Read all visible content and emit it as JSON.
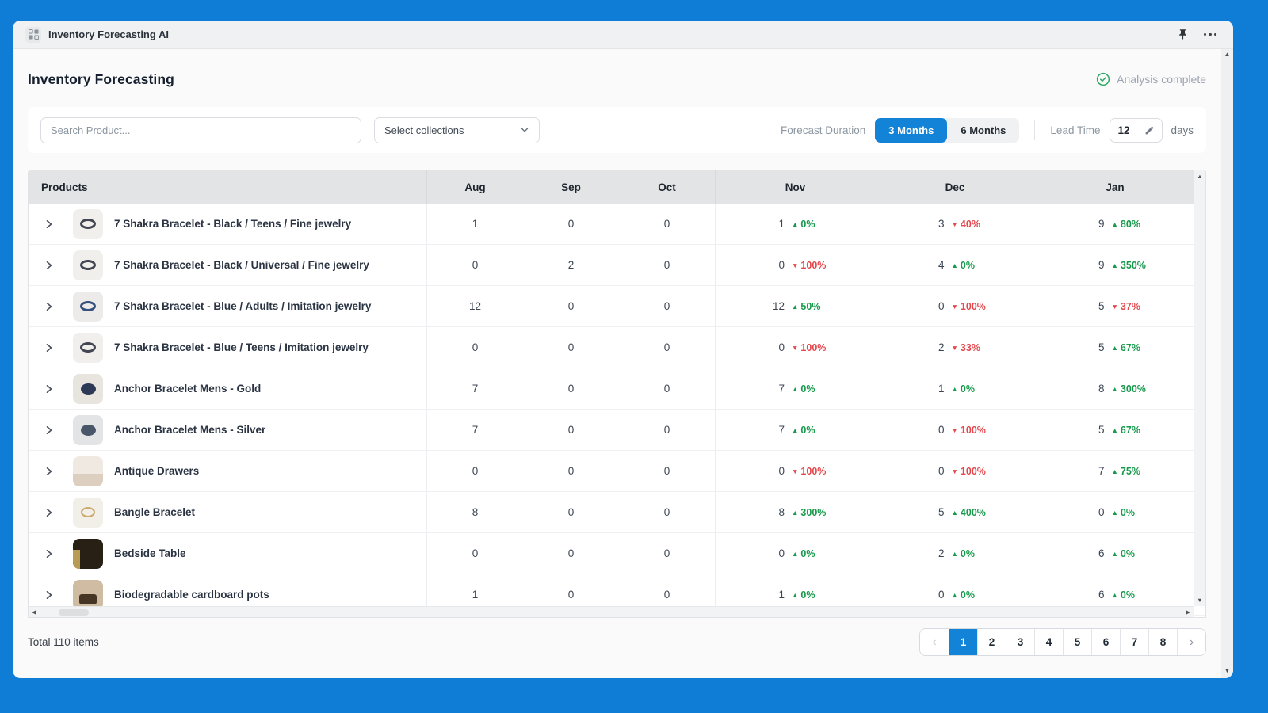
{
  "colors": {
    "accent": "#1283d6",
    "frame": "#0f7cd6",
    "up": "#189a4d",
    "down": "#e5484d"
  },
  "titlebar": {
    "app_title": "Inventory Forecasting AI"
  },
  "page": {
    "title": "Inventory Forecasting",
    "status": "Analysis complete"
  },
  "toolbar": {
    "search_placeholder": "Search Product...",
    "collections_label": "Select collections",
    "forecast_duration_label": "Forecast Duration",
    "duration_options": [
      "3 Months",
      "6 Months"
    ],
    "duration_active": "3 Months",
    "lead_time_label": "Lead Time",
    "lead_time_value": "12",
    "lead_time_unit": "days"
  },
  "table": {
    "columns": [
      "Products",
      "Aug",
      "Sep",
      "Oct",
      "Nov",
      "Dec",
      "Jan"
    ],
    "rows": [
      {
        "name": "7 Shakra Bracelet - Black / Teens / Fine jewelry",
        "aug": "1",
        "sep": "0",
        "oct": "0",
        "nov": {
          "v": "1",
          "dir": "up",
          "pct": "0%"
        },
        "dec": {
          "v": "3",
          "dir": "down",
          "pct": "40%"
        },
        "jan": {
          "v": "9",
          "dir": "up",
          "pct": "80%"
        },
        "thumb": {
          "bg": "#f1efec",
          "shape": "ring",
          "color": "#414652"
        }
      },
      {
        "name": "7 Shakra Bracelet - Black / Universal / Fine jewelry",
        "aug": "0",
        "sep": "2",
        "oct": "0",
        "nov": {
          "v": "0",
          "dir": "down",
          "pct": "100%"
        },
        "dec": {
          "v": "4",
          "dir": "up",
          "pct": "0%"
        },
        "jan": {
          "v": "9",
          "dir": "up",
          "pct": "350%"
        },
        "thumb": {
          "bg": "#f1efec",
          "shape": "ring",
          "color": "#414652"
        }
      },
      {
        "name": "7 Shakra Bracelet - Blue / Adults / Imitation jewelry",
        "aug": "12",
        "sep": "0",
        "oct": "0",
        "nov": {
          "v": "12",
          "dir": "up",
          "pct": "50%"
        },
        "dec": {
          "v": "0",
          "dir": "down",
          "pct": "100%"
        },
        "jan": {
          "v": "5",
          "dir": "down",
          "pct": "37%"
        },
        "thumb": {
          "bg": "#ecebe9",
          "shape": "ring",
          "color": "#35507c"
        }
      },
      {
        "name": "7 Shakra Bracelet - Blue / Teens / Imitation jewelry",
        "aug": "0",
        "sep": "0",
        "oct": "0",
        "nov": {
          "v": "0",
          "dir": "down",
          "pct": "100%"
        },
        "dec": {
          "v": "2",
          "dir": "down",
          "pct": "33%"
        },
        "jan": {
          "v": "5",
          "dir": "up",
          "pct": "67%"
        },
        "thumb": {
          "bg": "#f1efec",
          "shape": "ring",
          "color": "#414652"
        }
      },
      {
        "name": "Anchor Bracelet Mens - Gold",
        "aug": "7",
        "sep": "0",
        "oct": "0",
        "nov": {
          "v": "7",
          "dir": "up",
          "pct": "0%"
        },
        "dec": {
          "v": "1",
          "dir": "up",
          "pct": "0%"
        },
        "jan": {
          "v": "8",
          "dir": "up",
          "pct": "300%"
        },
        "thumb": {
          "bg": "#e8e4de",
          "shape": "knot",
          "color": "#2d3a55"
        }
      },
      {
        "name": "Anchor Bracelet Mens - Silver",
        "aug": "7",
        "sep": "0",
        "oct": "0",
        "nov": {
          "v": "7",
          "dir": "up",
          "pct": "0%"
        },
        "dec": {
          "v": "0",
          "dir": "down",
          "pct": "100%"
        },
        "jan": {
          "v": "5",
          "dir": "up",
          "pct": "67%"
        },
        "thumb": {
          "bg": "#e3e4e6",
          "shape": "knot",
          "color": "#49566a"
        }
      },
      {
        "name": "Antique Drawers",
        "aug": "0",
        "sep": "0",
        "oct": "0",
        "nov": {
          "v": "0",
          "dir": "down",
          "pct": "100%"
        },
        "dec": {
          "v": "0",
          "dir": "down",
          "pct": "100%"
        },
        "jan": {
          "v": "7",
          "dir": "up",
          "pct": "75%"
        },
        "thumb": {
          "bg": "#f0e9e1",
          "shape": "photo",
          "color": "#ddcfc0"
        }
      },
      {
        "name": "Bangle Bracelet",
        "aug": "8",
        "sep": "0",
        "oct": "0",
        "nov": {
          "v": "8",
          "dir": "up",
          "pct": "300%"
        },
        "dec": {
          "v": "5",
          "dir": "up",
          "pct": "400%"
        },
        "jan": {
          "v": "0",
          "dir": "up",
          "pct": "0%"
        },
        "thumb": {
          "bg": "#f2eee8",
          "shape": "ring-thin",
          "color": "#cbaa6c"
        }
      },
      {
        "name": "Bedside Table",
        "aug": "0",
        "sep": "0",
        "oct": "0",
        "nov": {
          "v": "0",
          "dir": "up",
          "pct": "0%"
        },
        "dec": {
          "v": "2",
          "dir": "up",
          "pct": "0%"
        },
        "jan": {
          "v": "6",
          "dir": "up",
          "pct": "0%"
        },
        "thumb": {
          "bg": "#282015",
          "shape": "photo-dark",
          "color": "#b89b55"
        }
      },
      {
        "name": "Biodegradable cardboard pots",
        "aug": "1",
        "sep": "0",
        "oct": "0",
        "nov": {
          "v": "1",
          "dir": "up",
          "pct": "0%"
        },
        "dec": {
          "v": "0",
          "dir": "up",
          "pct": "0%"
        },
        "jan": {
          "v": "6",
          "dir": "up",
          "pct": "0%"
        },
        "thumb": {
          "bg": "#cfbca2",
          "shape": "pots",
          "color": "#463524"
        }
      }
    ]
  },
  "footer": {
    "total_label": "Total 110 items",
    "pages": [
      "1",
      "2",
      "3",
      "4",
      "5",
      "6",
      "7",
      "8"
    ],
    "active_page": "1"
  }
}
